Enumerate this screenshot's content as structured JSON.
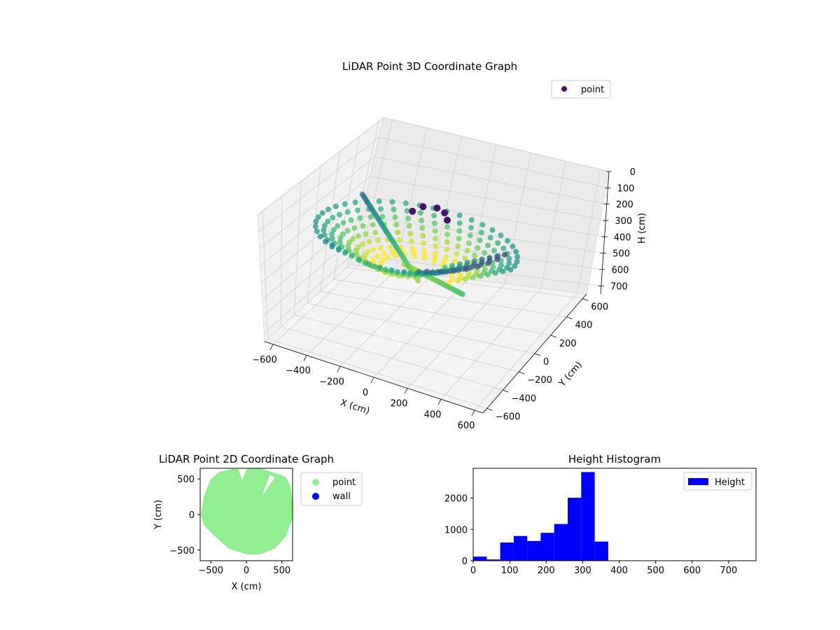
{
  "chart_data": [
    {
      "type": "scatter",
      "projection": "3d",
      "title": "LiDAR Point 3D Coordinate Graph",
      "xlabel": "X (cm)",
      "ylabel": "Y (cm)",
      "zlabel": "H (cm)",
      "x_ticks": [
        "−600",
        "−400",
        "−200",
        "0",
        "200",
        "400",
        "600"
      ],
      "y_ticks": [
        "−600",
        "−400",
        "−200",
        "0",
        "200",
        "400",
        "600"
      ],
      "z_ticks": [
        "0",
        "100",
        "200",
        "300",
        "400",
        "500",
        "600",
        "700"
      ],
      "xlim": [
        -650,
        650
      ],
      "ylim": [
        -650,
        650
      ],
      "zlim": [
        0,
        750
      ],
      "z_inverted": true,
      "colormap": "viridis",
      "legend": [
        "point"
      ],
      "legend_position": "top-right",
      "legend_color": "#46146e",
      "grid": true,
      "series": [
        {
          "name": "point",
          "description_values": [
            {
              "x": -200,
              "y": 600,
              "h": 260
            },
            {
              "x": 0,
              "y": 620,
              "h": 280
            },
            {
              "x": 200,
              "y": 600,
              "h": 290
            },
            {
              "x": 400,
              "y": 550,
              "h": 300
            },
            {
              "x": 560,
              "y": 300,
              "h": 320
            },
            {
              "x": 600,
              "y": 0,
              "h": 340
            },
            {
              "x": 550,
              "y": -200,
              "h": 300
            },
            {
              "x": 400,
              "y": -400,
              "h": 280
            },
            {
              "x": 100,
              "y": -500,
              "h": 230
            },
            {
              "x": -300,
              "y": -420,
              "h": 180
            },
            {
              "x": -500,
              "y": -100,
              "h": 140
            },
            {
              "x": -450,
              "y": 300,
              "h": 120
            },
            {
              "x": 0,
              "y": 0,
              "h": 330
            },
            {
              "x": 150,
              "y": 200,
              "h": 310
            }
          ]
        }
      ]
    },
    {
      "type": "scatter",
      "title": "LiDAR Point 2D Coordinate Graph",
      "xlabel": "X (cm)",
      "ylabel": "Y (cm)",
      "x_ticks": [
        "−500",
        "0",
        "500"
      ],
      "y_ticks": [
        "−500",
        "0",
        "500"
      ],
      "xlim": [
        -650,
        650
      ],
      "ylim": [
        -650,
        650
      ],
      "legend": [
        "point",
        "wall"
      ],
      "legend_position": "outside-right",
      "series": [
        {
          "name": "point",
          "color": "#90ee90"
        },
        {
          "name": "wall",
          "color": "#0000ff"
        }
      ]
    },
    {
      "type": "bar",
      "subtype": "histogram",
      "title": "Height Histogram",
      "legend": [
        "Height"
      ],
      "legend_position": "top-right",
      "color": "#0000ff",
      "x_ticks": [
        "0",
        "100",
        "200",
        "300",
        "400",
        "500",
        "600",
        "700"
      ],
      "y_ticks": [
        "0",
        "1000",
        "2000"
      ],
      "xlim": [
        0,
        775
      ],
      "ylim": [
        0,
        2950
      ],
      "bin_width": 37,
      "bins": [
        {
          "start": 0,
          "count": 130
        },
        {
          "start": 37,
          "count": 40
        },
        {
          "start": 74,
          "count": 580
        },
        {
          "start": 111,
          "count": 790
        },
        {
          "start": 148,
          "count": 630
        },
        {
          "start": 185,
          "count": 890
        },
        {
          "start": 222,
          "count": 1170
        },
        {
          "start": 259,
          "count": 2010
        },
        {
          "start": 296,
          "count": 2830
        },
        {
          "start": 333,
          "count": 610
        },
        {
          "start": 370,
          "count": 0
        },
        {
          "start": 407,
          "count": 0
        },
        {
          "start": 444,
          "count": 0
        },
        {
          "start": 481,
          "count": 0
        },
        {
          "start": 518,
          "count": 0
        },
        {
          "start": 555,
          "count": 0
        },
        {
          "start": 592,
          "count": 0
        },
        {
          "start": 629,
          "count": 0
        },
        {
          "start": 666,
          "count": 0
        },
        {
          "start": 703,
          "count": 0
        },
        {
          "start": 740,
          "count": 0
        }
      ]
    }
  ]
}
